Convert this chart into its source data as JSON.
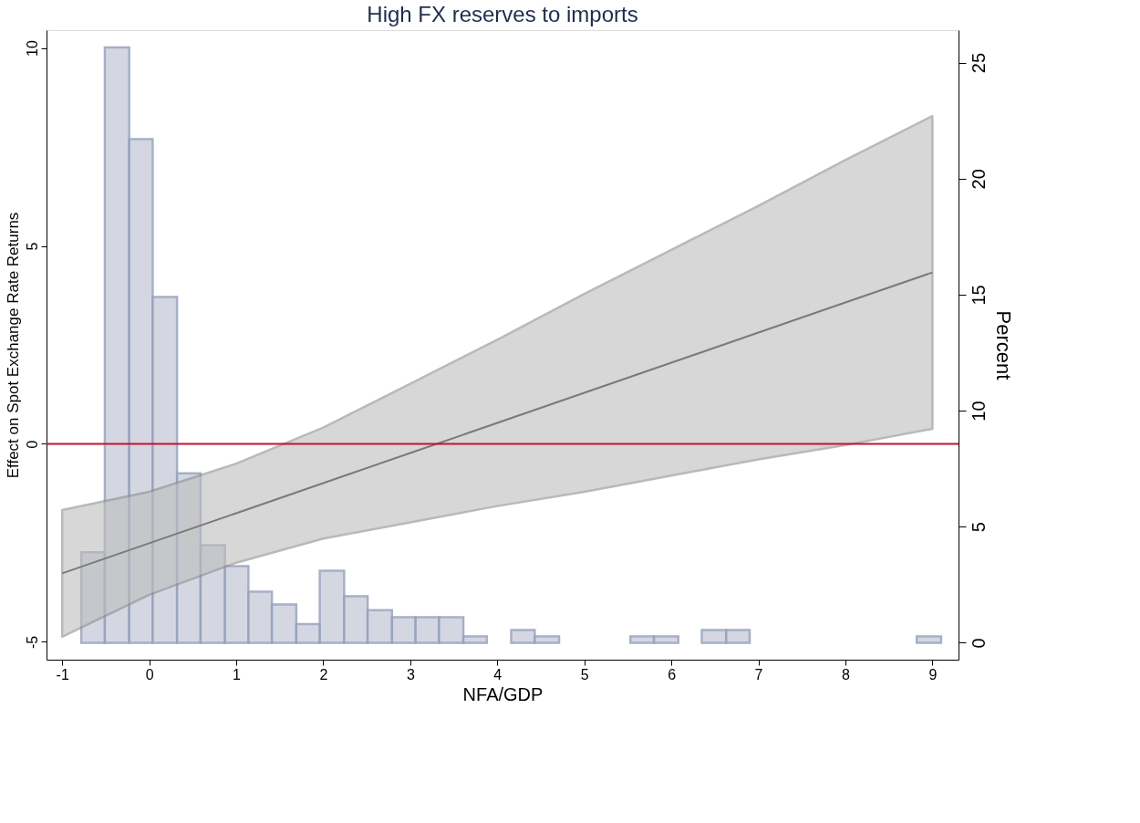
{
  "chart_data": {
    "type": "line",
    "title": "High FX reserves to imports",
    "xlabel": "NFA/GDP",
    "ylabel": "Effect on Spot Exchange Rate Returns",
    "y2label": "Percent",
    "xlim": [
      -1.18,
      9.3
    ],
    "xticks": [
      -1,
      0,
      1,
      2,
      3,
      4,
      5,
      6,
      7,
      8,
      9
    ],
    "ylim": [
      -5.45,
      10.45
    ],
    "yticks": [
      -5,
      0,
      5,
      10
    ],
    "y2lim": [
      -0.73,
      26.4
    ],
    "y2ticks": [
      0,
      5,
      10,
      15,
      20,
      25
    ],
    "grid": false,
    "series": [
      {
        "type": "histogram",
        "axis": "y2",
        "color": "#cdd1de",
        "bins": [
          -0.78,
          -0.51,
          -0.23,
          0.04,
          0.32,
          0.59,
          0.87,
          1.14,
          1.41,
          1.69,
          1.96,
          2.24,
          2.51,
          2.79,
          3.06,
          3.33,
          3.61,
          3.88
        ],
        "values": [
          3.9,
          25.65,
          21.7,
          14.9,
          7.3,
          4.2,
          3.3,
          2.2,
          1.65,
          0.8,
          3.1,
          2.0,
          1.4,
          1.1,
          1.1,
          1.1,
          0.27
        ]
      },
      {
        "type": "histogram",
        "axis": "y2",
        "color": "#cdd1de",
        "bins": [
          4.16,
          4.43,
          4.71
        ],
        "values": [
          0.55,
          0.27
        ]
      },
      {
        "type": "histogram",
        "axis": "y2",
        "color": "#cdd1de",
        "bins": [
          5.53,
          5.8,
          6.08
        ],
        "values": [
          0.27,
          0.27
        ]
      },
      {
        "type": "histogram",
        "axis": "y2",
        "color": "#cdd1de",
        "bins": [
          6.35,
          6.63,
          6.9
        ],
        "values": [
          0.55,
          0.55
        ]
      },
      {
        "type": "histogram",
        "axis": "y2",
        "color": "#cdd1de",
        "bins": [
          8.82,
          9.1
        ],
        "values": [
          0.27
        ]
      },
      {
        "color": "#7a7a7a",
        "x": [
          -1,
          0,
          1,
          2,
          3,
          4,
          5,
          6,
          7,
          8,
          9
        ],
        "values": [
          -3.27,
          -2.51,
          -1.75,
          -0.99,
          -0.23,
          0.53,
          1.29,
          2.05,
          2.81,
          3.57,
          4.33
        ],
        "lower": [
          -4.87,
          -3.81,
          -3.0,
          -2.39,
          -1.98,
          -1.57,
          -1.21,
          -0.8,
          -0.39,
          -0.03,
          0.38
        ],
        "upper": [
          -1.67,
          -1.21,
          -0.5,
          0.41,
          1.52,
          2.63,
          3.79,
          4.9,
          6.01,
          7.17,
          8.28
        ]
      }
    ],
    "ref_lines": [
      {
        "axis": "y",
        "value": 0,
        "label": null,
        "color": "#c8102e"
      }
    ]
  }
}
